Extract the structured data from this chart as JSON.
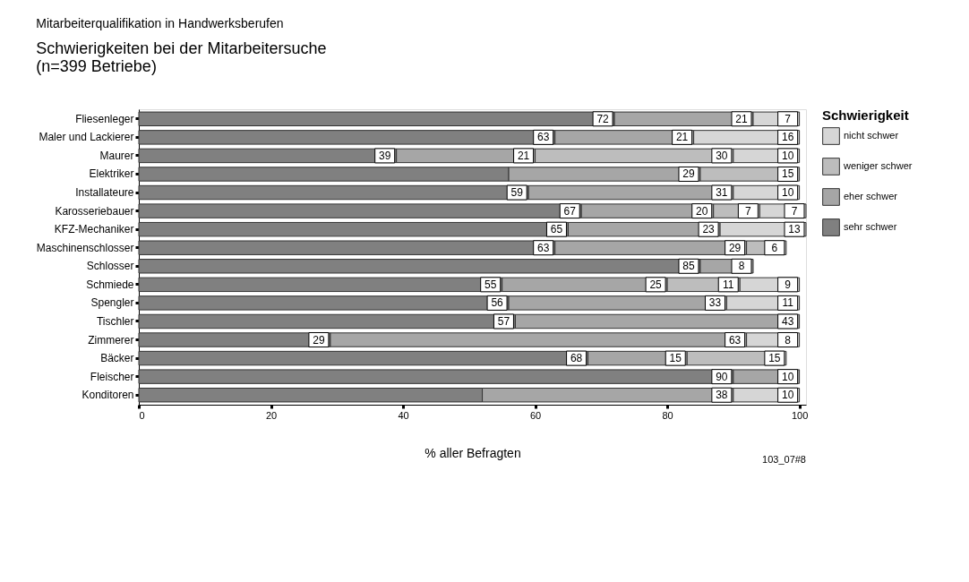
{
  "chart_data": {
    "type": "bar",
    "orientation": "horizontal",
    "stacked": true,
    "title": "Mitarbeiterqualifikation in Handwerksberufen",
    "subtitle": "Schwierigkeiten bei der Mitarbeitersuche",
    "xlabel": "% aller Befragten",
    "legend_title": "Schwierigkeit",
    "annotations": [
      "(n=399 Betriebe)",
      "103_07#8"
    ],
    "categories": [
      "Fliesenleger",
      "Maler und Lackierer",
      "Maurer",
      "Elektriker",
      "Installateure",
      "Karosseriebauer",
      "KFZ-Mechaniker",
      "Maschinenschlosser",
      "Schlosser",
      "Schmiede",
      "Spengler",
      "Tischler",
      "Zimmerer",
      "Bäcker",
      "Fleischer",
      "Konditoren"
    ],
    "series": [
      {
        "name": "sehr schwer",
        "color": "#808080",
        "values": [
          72,
          63,
          39,
          56,
          59,
          67,
          65,
          63,
          85,
          55,
          56,
          57,
          29,
          68,
          90,
          52
        ],
        "value_labels": [
          "72",
          "63",
          "39",
          null,
          "59",
          "67",
          "65",
          "63",
          "85",
          "55",
          "56",
          "57",
          "29",
          "68",
          "90",
          null
        ]
      },
      {
        "name": "eher schwer",
        "color": "#a6a6a6",
        "values": [
          21,
          21,
          21,
          29,
          31,
          20,
          23,
          29,
          8,
          25,
          33,
          43,
          63,
          15,
          10,
          38
        ],
        "value_labels": [
          "21",
          "21",
          "21",
          "29",
          "31",
          "20",
          "23",
          "29",
          "8",
          "25",
          "33",
          "43",
          "63",
          "15",
          "10",
          "38"
        ]
      },
      {
        "name": "weniger schwer",
        "color": "#bdbdbd",
        "values": [
          null,
          null,
          30,
          15,
          null,
          7,
          null,
          6,
          null,
          11,
          null,
          null,
          null,
          15,
          null,
          null
        ],
        "value_labels": [
          null,
          null,
          "30",
          "15",
          null,
          "7",
          null,
          "6",
          null,
          "11",
          null,
          null,
          null,
          "15",
          null,
          null
        ]
      },
      {
        "name": "nicht schwer",
        "color": "#d6d6d6",
        "values": [
          7,
          16,
          10,
          null,
          10,
          7,
          13,
          null,
          null,
          9,
          11,
          null,
          8,
          null,
          null,
          10
        ],
        "value_labels": [
          "7",
          "16",
          "10",
          null,
          "10",
          "7",
          "13",
          null,
          null,
          "9",
          "11",
          null,
          "8",
          null,
          null,
          "10"
        ]
      }
    ],
    "xlim": [
      0,
      101
    ],
    "xticks": [
      0,
      20,
      40,
      60,
      80,
      100
    ],
    "grid": false,
    "legend": "right"
  }
}
